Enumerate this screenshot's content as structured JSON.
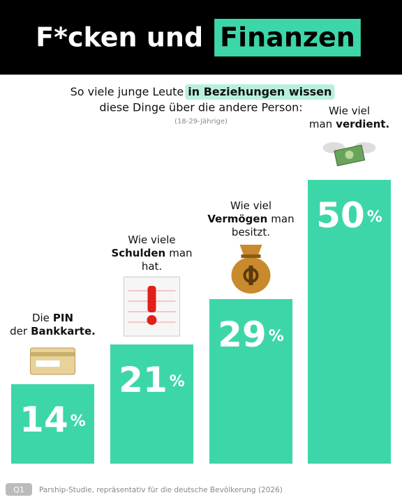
{
  "chart_data": {
    "type": "bar",
    "title": "F*cken und",
    "title_highlight": "Finanzen",
    "subtitle": {
      "lead": "So viele junge Leute",
      "highlight": "in Beziehungen wissen",
      "rest": "diese Dinge über die andere Person:"
    },
    "note": "(18-29-Jährige)",
    "categories": [
      [
        [
          {
            "text": "Die"
          },
          {
            "text": "PIN",
            "bold": true
          }
        ],
        [
          {
            "text": "der"
          },
          {
            "text": "Bankkarte.",
            "bold": true
          }
        ]
      ],
      [
        [
          {
            "text": "Wie viele"
          }
        ],
        [
          {
            "text": "Schulden",
            "bold": true
          },
          {
            "text": "man"
          }
        ],
        [
          {
            "text": "hat."
          }
        ]
      ],
      [
        [
          {
            "text": "Wie viel"
          }
        ],
        [
          {
            "text": "Vermögen",
            "bold": true
          },
          {
            "text": "man"
          }
        ],
        [
          {
            "text": "besitzt."
          }
        ]
      ],
      [
        [
          {
            "text": "Wie viel"
          }
        ],
        [
          {
            "text": "man"
          },
          {
            "text": "verdient.",
            "bold": true
          }
        ]
      ]
    ],
    "values": [
      14,
      21,
      29,
      50
    ],
    "value_labels": [
      "14%",
      "21%",
      "29%",
      "50%"
    ],
    "color": "#3dd6a8",
    "ylim": [
      0,
      50
    ],
    "source_badge": "Q1",
    "source": "Parship-Studie, repräsentativ für die deutsche Bevölkerung (2026)"
  }
}
